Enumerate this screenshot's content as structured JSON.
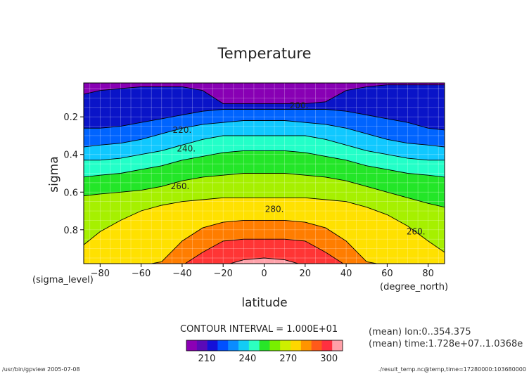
{
  "chart_data": {
    "type": "heatmap",
    "title": "Temperature",
    "xlabel": "latitude",
    "ylabel": "sigma",
    "x_unit": "(degree_north)",
    "y_unit": "(sigma_level)",
    "xlim": [
      -88,
      88
    ],
    "ylim": [
      0.98,
      0.02
    ],
    "x_ticks": [
      -80,
      -60,
      -40,
      -20,
      0,
      20,
      40,
      60,
      80
    ],
    "y_ticks": [
      0.2,
      0.4,
      0.6,
      0.8
    ],
    "grid": true,
    "contour_levels": [
      200,
      210,
      220,
      230,
      240,
      250,
      260,
      270,
      280,
      290,
      300
    ],
    "contour_labels": [
      {
        "text": "200.",
        "lat": 17,
        "sigma": 0.14
      },
      {
        "text": "220.",
        "lat": -40,
        "sigma": 0.27
      },
      {
        "text": "240.",
        "lat": -38,
        "sigma": 0.37
      },
      {
        "text": "260.",
        "lat": -41,
        "sigma": 0.57
      },
      {
        "text": "280.",
        "lat": 5,
        "sigma": 0.69
      },
      {
        "text": "260.",
        "lat": 74,
        "sigma": 0.81
      }
    ],
    "contour_interval": "CONTOUR INTERVAL = 1.000E+01",
    "colorbar_ticks": [
      210,
      240,
      270,
      300
    ],
    "colorbar_colors": [
      "#8c00b5",
      "#5a0ab8",
      "#1410d8",
      "#0050ff",
      "#0a8cff",
      "#13ccf5",
      "#2dffc0",
      "#28e628",
      "#78f000",
      "#cdf000",
      "#ffd700",
      "#ff9400",
      "#ff5a1a",
      "#ff3040",
      "#ffa0a8"
    ],
    "band_colors": [
      "#8800b4",
      "#0a14c8",
      "#0064ff",
      "#10c8ff",
      "#23ffc8",
      "#23e628",
      "#a6f000",
      "#ffe100",
      "#ff7d00",
      "#ff3535",
      "#ffa2aa"
    ],
    "boundary_profiles": {
      "lats": [
        -88,
        -80,
        -70,
        -60,
        -50,
        -40,
        -30,
        -20,
        -10,
        0,
        10,
        20,
        30,
        40,
        50,
        60,
        70,
        80,
        88
      ],
      "sigma_at_level": [
        [
          0.04,
          0.03,
          0.02,
          0.02,
          0.02,
          0.02,
          0.02,
          0.02,
          0.02,
          0.02,
          0.02,
          0.02,
          0.02,
          0.02,
          0.02,
          0.02,
          0.02,
          0.02,
          0.02
        ],
        [
          0.08,
          0.06,
          0.05,
          0.04,
          0.04,
          0.04,
          0.06,
          0.13,
          0.13,
          0.13,
          0.13,
          0.13,
          0.12,
          0.06,
          0.04,
          0.03,
          0.03,
          0.03,
          0.03
        ],
        [
          0.26,
          0.26,
          0.25,
          0.23,
          0.21,
          0.19,
          0.17,
          0.16,
          0.16,
          0.16,
          0.16,
          0.16,
          0.16,
          0.17,
          0.19,
          0.21,
          0.23,
          0.26,
          0.27
        ],
        [
          0.36,
          0.35,
          0.34,
          0.32,
          0.29,
          0.26,
          0.24,
          0.23,
          0.22,
          0.22,
          0.22,
          0.23,
          0.24,
          0.26,
          0.29,
          0.32,
          0.34,
          0.35,
          0.36
        ],
        [
          0.43,
          0.43,
          0.42,
          0.4,
          0.38,
          0.35,
          0.32,
          0.3,
          0.3,
          0.3,
          0.3,
          0.3,
          0.32,
          0.35,
          0.38,
          0.4,
          0.42,
          0.43,
          0.43
        ],
        [
          0.52,
          0.51,
          0.5,
          0.48,
          0.46,
          0.43,
          0.41,
          0.39,
          0.38,
          0.38,
          0.38,
          0.39,
          0.41,
          0.43,
          0.46,
          0.48,
          0.5,
          0.51,
          0.52
        ],
        [
          0.62,
          0.61,
          0.6,
          0.59,
          0.57,
          0.54,
          0.52,
          0.51,
          0.5,
          0.5,
          0.5,
          0.51,
          0.52,
          0.54,
          0.57,
          0.6,
          0.63,
          0.66,
          0.68
        ],
        [
          0.88,
          0.81,
          0.75,
          0.7,
          0.67,
          0.65,
          0.64,
          0.63,
          0.63,
          0.63,
          0.63,
          0.63,
          0.64,
          0.65,
          0.68,
          0.72,
          0.78,
          0.86,
          0.92
        ],
        [
          0.99,
          0.99,
          0.99,
          0.99,
          0.97,
          0.86,
          0.79,
          0.76,
          0.75,
          0.75,
          0.75,
          0.76,
          0.79,
          0.86,
          0.97,
          0.99,
          0.99,
          0.99,
          0.99
        ],
        [
          0.99,
          0.99,
          0.99,
          0.99,
          0.99,
          0.99,
          0.92,
          0.86,
          0.85,
          0.85,
          0.85,
          0.86,
          0.92,
          0.99,
          0.99,
          0.99,
          0.99,
          0.99,
          0.99
        ],
        [
          0.99,
          0.99,
          0.99,
          0.99,
          0.99,
          0.99,
          0.99,
          0.99,
          0.96,
          0.95,
          0.96,
          0.99,
          0.99,
          0.99,
          0.99,
          0.99,
          0.99,
          0.99,
          0.99
        ]
      ]
    }
  },
  "footer": {
    "left": "/usr/bin/gpview  2005-07-08",
    "right": "./result_temp.nc@temp,time=17280000:103680000"
  },
  "info": {
    "mean_lon": "(mean) lon:0..354.375",
    "mean_time": "(mean) time:1.728e+07..1.0368e"
  }
}
